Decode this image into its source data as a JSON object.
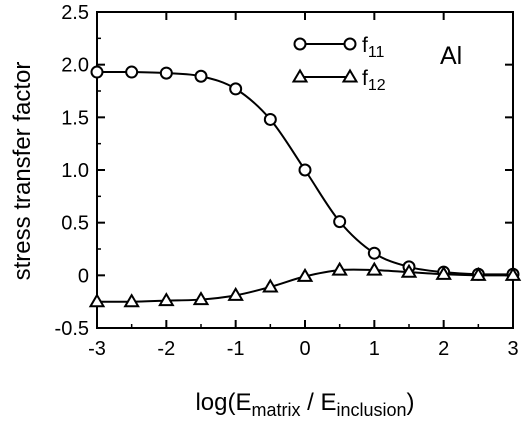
{
  "chart_data": {
    "type": "line",
    "title": "",
    "xlabel": {
      "prefix": "log(E",
      "sub1": "matrix",
      "middle": " / E",
      "sub2": "inclusion",
      "suffix": ")"
    },
    "ylabel": "stress transfer factor",
    "xlim": [
      -3,
      3
    ],
    "ylim": [
      -0.5,
      2.5
    ],
    "x_ticks": [
      -3,
      -2,
      -1,
      0,
      1,
      2,
      3
    ],
    "x_tick_labels": [
      "-3",
      "-2",
      "-1",
      "0",
      "1",
      "2",
      "3"
    ],
    "y_ticks": [
      -0.5,
      0,
      0.5,
      1.0,
      1.5,
      2.0,
      2.5
    ],
    "y_tick_labels": [
      "-0.5",
      "0",
      "0.5",
      "1.0",
      "1.5",
      "2.0",
      "2.5"
    ],
    "annotation": "Al",
    "legend_position": "top-center",
    "series": [
      {
        "name": "f11",
        "name_base": "f",
        "name_sub": "11",
        "marker": "circle",
        "x": [
          -3,
          -2.5,
          -2,
          -1.5,
          -1,
          -0.5,
          0,
          0.5,
          1,
          1.5,
          2,
          2.5,
          3
        ],
        "y": [
          1.93,
          1.93,
          1.92,
          1.89,
          1.77,
          1.48,
          1.0,
          0.51,
          0.21,
          0.08,
          0.03,
          0.01,
          0.01
        ]
      },
      {
        "name": "f12",
        "name_base": "f",
        "name_sub": "12",
        "marker": "triangle",
        "x": [
          -3,
          -2.5,
          -2,
          -1.5,
          -1,
          -0.5,
          0,
          0.5,
          1,
          1.5,
          2,
          2.5,
          3
        ],
        "y": [
          -0.25,
          -0.25,
          -0.24,
          -0.23,
          -0.19,
          -0.11,
          -0.01,
          0.05,
          0.05,
          0.03,
          0.01,
          0.0,
          0.0
        ]
      }
    ]
  }
}
